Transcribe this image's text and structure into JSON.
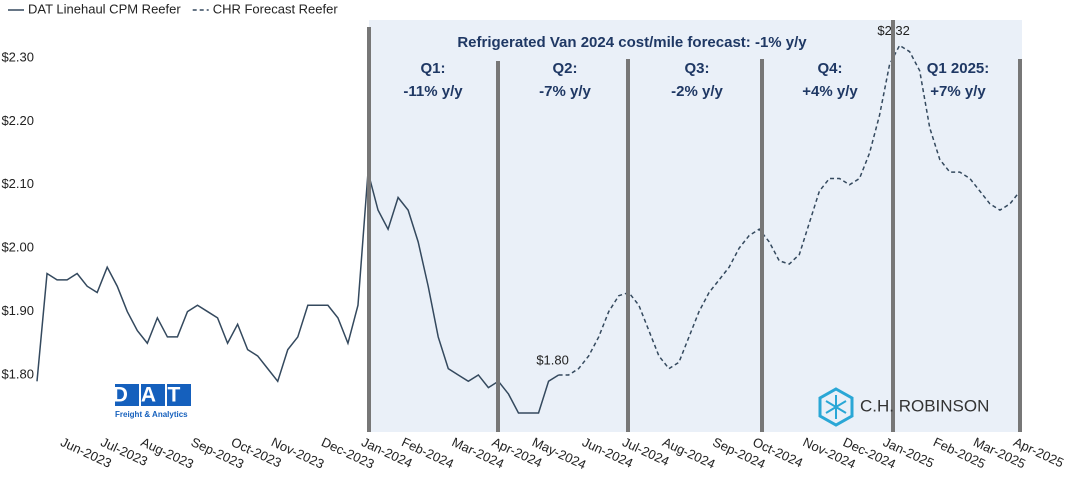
{
  "chart_data": {
    "type": "line",
    "title": "Refrigerated Van 2024 cost/mile forecast: -1% y/y",
    "annotations": [
      {
        "lines": [
          "Q1:",
          "-11% y/y"
        ]
      },
      {
        "lines": [
          "Q2:",
          "-7% y/y"
        ]
      },
      {
        "lines": [
          "Q3:",
          "-2% y/y"
        ]
      },
      {
        "lines": [
          "Q4:",
          "+4% y/y"
        ]
      },
      {
        "lines": [
          "Q1 2025:",
          "+7% y/y"
        ]
      }
    ],
    "logos": {
      "dat": "DAT",
      "dat_sub": "Freight & Analytics",
      "chr": "C.H. ROBINSON"
    },
    "categories": [
      null,
      null,
      null,
      "Jun-2023",
      null,
      null,
      null,
      "Jul-2023",
      null,
      null,
      null,
      "Aug-2023",
      null,
      null,
      null,
      null,
      "Sep-2023",
      null,
      null,
      null,
      "Oct-2023",
      null,
      null,
      null,
      "Nov-2023",
      null,
      null,
      null,
      null,
      "Dec-2023",
      null,
      null,
      null,
      "Jan-2024",
      null,
      null,
      null,
      "Feb-2024",
      null,
      null,
      null,
      null,
      "Mar-2024",
      null,
      null,
      null,
      "Apr-2024",
      null,
      null,
      null,
      "May-2024",
      null,
      null,
      null,
      null,
      "Jun-2024",
      null,
      null,
      null,
      "Jul-2024",
      null,
      null,
      null,
      "Aug-2024",
      null,
      null,
      null,
      null,
      "Sep-2024",
      null,
      null,
      null,
      "Oct-2024",
      null,
      null,
      null,
      null,
      "Nov-2024",
      null,
      null,
      null,
      "Dec-2024",
      null,
      null,
      null,
      "Jan-2025",
      null,
      null,
      null,
      null,
      "Feb-2025",
      null,
      null,
      null,
      "Mar-2025",
      null,
      null,
      null,
      "Apr-2025"
    ],
    "series": [
      {
        "name": "DAT Linehaul CPM Reefer",
        "color": "#34495e",
        "dash": false,
        "values": [
          1.79,
          1.96,
          1.95,
          1.95,
          1.96,
          1.94,
          1.93,
          1.97,
          1.94,
          1.9,
          1.87,
          1.85,
          1.89,
          1.86,
          1.86,
          1.9,
          1.91,
          1.9,
          1.89,
          1.85,
          1.88,
          1.84,
          1.83,
          1.81,
          1.79,
          1.84,
          1.86,
          1.91,
          1.91,
          1.91,
          1.89,
          1.85,
          1.91,
          2.12,
          2.06,
          2.03,
          2.08,
          2.06,
          2.01,
          1.94,
          1.86,
          1.81,
          1.8,
          1.79,
          1.8,
          1.78,
          1.79,
          1.77,
          1.74,
          1.74,
          1.74,
          1.79,
          1.8,
          null,
          null,
          null,
          null,
          null,
          null,
          null,
          null,
          null,
          null,
          null,
          null,
          null,
          null,
          null,
          null,
          null,
          null,
          null,
          null,
          null,
          null,
          null,
          null,
          null,
          null,
          null,
          null,
          null,
          null,
          null,
          null,
          null,
          null,
          null,
          null,
          null,
          null,
          null,
          null,
          null,
          null,
          null,
          null,
          null,
          null
        ],
        "value_labels": [
          null,
          null,
          null,
          null,
          null,
          null,
          null,
          null,
          null,
          null,
          null,
          null,
          null,
          null,
          null,
          null,
          null,
          null,
          null,
          null,
          null,
          null,
          null,
          null,
          null,
          null,
          null,
          null,
          null,
          null,
          null,
          null,
          null,
          null,
          null,
          null,
          null,
          null,
          null,
          null,
          null,
          null,
          null,
          null,
          null,
          null,
          null,
          null,
          null,
          null,
          null,
          null,
          "$1.80",
          null,
          null,
          null,
          null,
          null,
          null,
          null,
          null,
          null,
          null,
          null,
          null,
          null,
          null,
          null,
          null,
          null,
          null,
          null,
          null,
          null,
          null,
          null,
          null,
          null,
          null,
          null,
          null,
          null,
          null,
          null,
          null,
          null,
          null,
          null,
          null,
          null,
          null,
          null,
          null,
          null,
          null,
          null,
          null,
          null,
          null
        ]
      },
      {
        "name": "CHR Forecast Reefer",
        "color": "#34495e",
        "dash": true,
        "values": [
          null,
          null,
          null,
          null,
          null,
          null,
          null,
          null,
          null,
          null,
          null,
          null,
          null,
          null,
          null,
          null,
          null,
          null,
          null,
          null,
          null,
          null,
          null,
          null,
          null,
          null,
          null,
          null,
          null,
          null,
          null,
          null,
          null,
          null,
          null,
          null,
          null,
          null,
          null,
          null,
          null,
          null,
          null,
          null,
          null,
          null,
          null,
          null,
          null,
          null,
          null,
          null,
          1.8,
          1.8,
          1.81,
          1.83,
          1.86,
          1.9,
          1.925,
          1.93,
          1.91,
          1.87,
          1.83,
          1.81,
          1.82,
          1.86,
          1.9,
          1.93,
          1.95,
          1.97,
          2.0,
          2.02,
          2.03,
          2.01,
          1.98,
          1.975,
          1.99,
          2.04,
          2.09,
          2.11,
          2.11,
          2.1,
          2.11,
          2.15,
          2.21,
          2.29,
          2.32,
          2.31,
          2.28,
          2.19,
          2.14,
          2.12,
          2.12,
          2.11,
          2.09,
          2.07,
          2.06,
          2.07,
          2.09
        ],
        "value_labels": [
          null,
          null,
          null,
          null,
          null,
          null,
          null,
          null,
          null,
          null,
          null,
          null,
          null,
          null,
          null,
          null,
          null,
          null,
          null,
          null,
          null,
          null,
          null,
          null,
          null,
          null,
          null,
          null,
          null,
          null,
          null,
          null,
          null,
          null,
          null,
          null,
          null,
          null,
          null,
          null,
          null,
          null,
          null,
          null,
          null,
          null,
          null,
          null,
          null,
          null,
          null,
          null,
          null,
          null,
          null,
          null,
          null,
          null,
          null,
          null,
          null,
          null,
          null,
          null,
          null,
          null,
          null,
          null,
          null,
          null,
          null,
          null,
          null,
          null,
          null,
          null,
          null,
          null,
          null,
          null,
          null,
          null,
          null,
          null,
          null,
          null,
          "$2.32",
          null,
          null,
          null,
          null,
          null,
          null,
          null,
          null,
          null,
          null,
          null,
          null
        ]
      }
    ],
    "ylim": [
      1.71,
      2.36
    ],
    "yticks": [
      {
        "value": 1.8,
        "label": "$1.80"
      },
      {
        "value": 1.9,
        "label": "$1.90"
      },
      {
        "value": 2.0,
        "label": "$2.00"
      },
      {
        "value": 2.1,
        "label": "$2.10"
      },
      {
        "value": 2.2,
        "label": "$2.20"
      },
      {
        "value": 2.3,
        "label": "$2.30"
      }
    ],
    "grid": false,
    "legend": "top-left"
  }
}
